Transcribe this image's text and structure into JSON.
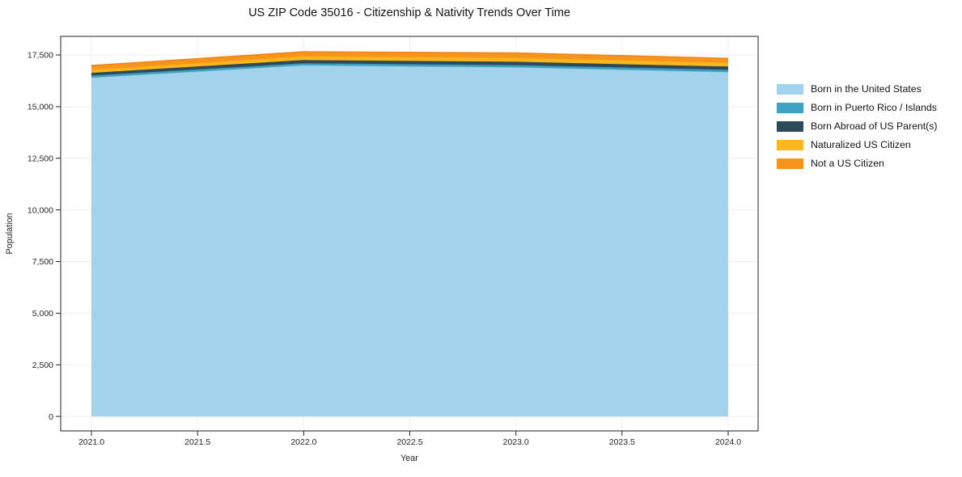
{
  "chart": {
    "title": "US ZIP Code 35016 - Citizenship & Nativity Trends Over Time",
    "xlabel": "Year",
    "ylabel": "Population"
  },
  "chart_data": {
    "type": "area",
    "stacked": true,
    "title": "US ZIP Code 35016 - Citizenship & Nativity Trends Over Time",
    "xlabel": "Year",
    "ylabel": "Population",
    "x": [
      2021,
      2022,
      2023,
      2024
    ],
    "series": [
      {
        "name": "Born in the United States",
        "color": "#A2D3EA",
        "edge_color": "#8FC8E2",
        "values": [
          16400,
          17000,
          16900,
          16670
        ]
      },
      {
        "name": "Born in Puerto Rico / Islands",
        "color": "#3EA1C3",
        "edge_color": "#3794B5",
        "values": [
          105,
          100,
          110,
          115
        ]
      },
      {
        "name": "Born Abroad of US Parent(s)",
        "color": "#2E4A5A",
        "edge_color": "#2A4453",
        "values": [
          130,
          155,
          160,
          155
        ]
      },
      {
        "name": "Naturalized US Citizen",
        "color": "#FBB61E",
        "edge_color": "#F2A70E",
        "values": [
          155,
          190,
          200,
          195
        ]
      },
      {
        "name": "Not a US Citizen",
        "color": "#F7941E",
        "edge_color": "#ED8414",
        "values": [
          200,
          210,
          230,
          200
        ]
      }
    ],
    "xlim": [
      2020.855,
      2024.141
    ],
    "ylim": [
      -700,
      18400
    ],
    "xticks": {
      "values": [
        2021.0,
        2021.5,
        2022.0,
        2022.5,
        2023.0,
        2023.5,
        2024.0
      ],
      "labels": [
        "2021.0",
        "2021.5",
        "2022.0",
        "2022.5",
        "2023.0",
        "2023.5",
        "2024.0"
      ]
    },
    "yticks": {
      "values": [
        0,
        2500,
        5000,
        7500,
        10000,
        12500,
        15000,
        17500
      ],
      "labels": [
        "0",
        "2,500",
        "5,000",
        "7,500",
        "10,000",
        "12,500",
        "15,000",
        "17,500"
      ]
    },
    "grid": true,
    "legend_position": "right-outside"
  }
}
